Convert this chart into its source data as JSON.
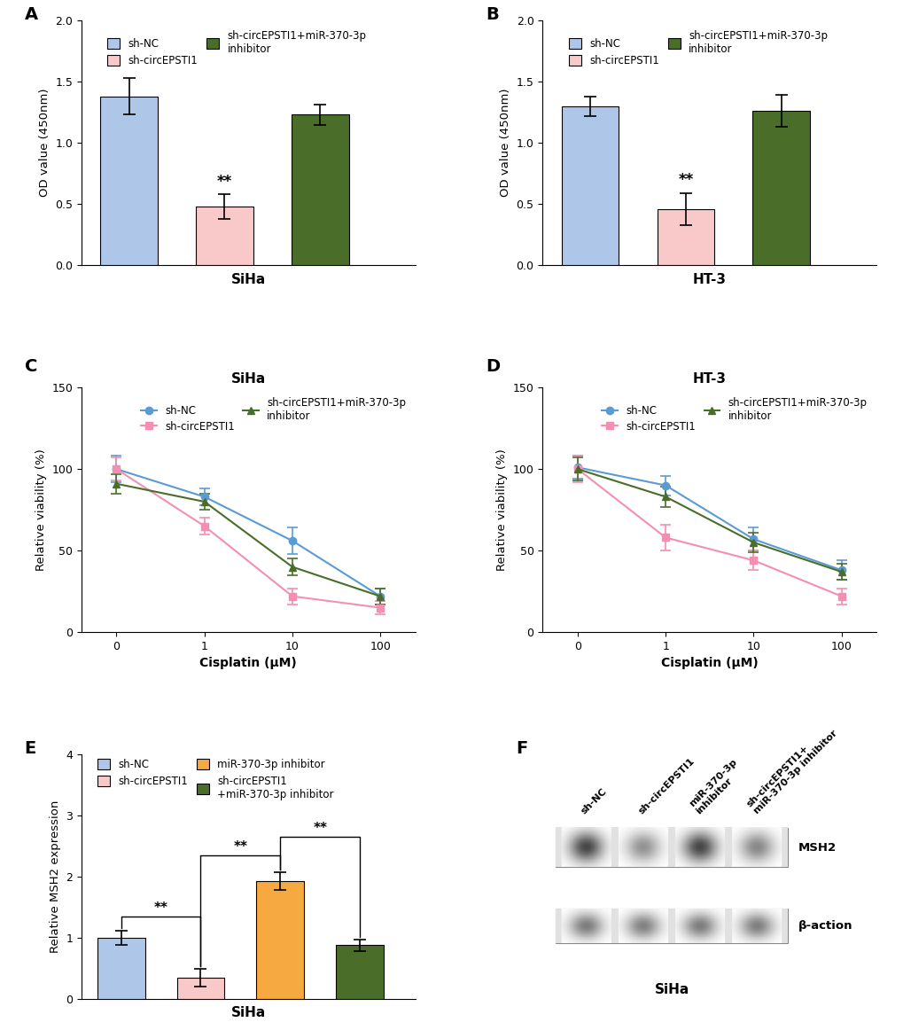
{
  "panel_A": {
    "title": "SiHa",
    "ylabel": "OD value (450nm)",
    "ylim": [
      0,
      2.0
    ],
    "yticks": [
      0.0,
      0.5,
      1.0,
      1.5,
      2.0
    ],
    "bars": [
      {
        "label": "sh-NC",
        "value": 1.38,
        "err": 0.15,
        "color": "#aec6e8"
      },
      {
        "label": "sh-circEPSTI1",
        "value": 0.48,
        "err": 0.1,
        "color": "#f9c8c8"
      },
      {
        "label": "sh-circEPSTI1+miR-370-3p\ninhibitor",
        "value": 1.23,
        "err": 0.08,
        "color": "#4a6e2a"
      }
    ],
    "sig_bar": [
      1,
      "**"
    ]
  },
  "panel_B": {
    "title": "HT-3",
    "ylabel": "OD value (450nm)",
    "ylim": [
      0,
      2.0
    ],
    "yticks": [
      0.0,
      0.5,
      1.0,
      1.5,
      2.0
    ],
    "bars": [
      {
        "label": "sh-NC",
        "value": 1.3,
        "err": 0.08,
        "color": "#aec6e8"
      },
      {
        "label": "sh-circEPSTI1",
        "value": 0.46,
        "err": 0.13,
        "color": "#f9c8c8"
      },
      {
        "label": "sh-circEPSTI1+miR-370-3p\ninhibitor",
        "value": 1.26,
        "err": 0.13,
        "color": "#4a6e2a"
      }
    ],
    "sig_bar": [
      1,
      "**"
    ]
  },
  "panel_C": {
    "title": "SiHa",
    "xlabel": "Cisplatin (μM)",
    "ylabel": "Relative viability (%)",
    "ylim": [
      0,
      150
    ],
    "yticks": [
      0,
      50,
      100,
      150
    ],
    "xticklabels": [
      "0",
      "1",
      "10",
      "100"
    ],
    "lines": [
      {
        "label": "sh-NC",
        "y": [
          100,
          83,
          56,
          22
        ],
        "err": [
          8,
          5,
          8,
          5
        ],
        "color": "#5b9bd5",
        "marker": "o"
      },
      {
        "label": "sh-circEPSTI1",
        "y": [
          100,
          65,
          22,
          15
        ],
        "err": [
          7,
          5,
          5,
          4
        ],
        "color": "#f48fb1",
        "marker": "s"
      },
      {
        "label": "sh-circEPSTI1+miR-370-3p\ninhibitor",
        "y": [
          91,
          80,
          40,
          22
        ],
        "err": [
          6,
          5,
          5,
          5
        ],
        "color": "#4a6e2a",
        "marker": "^"
      }
    ]
  },
  "panel_D": {
    "title": "HT-3",
    "xlabel": "Cisplatin (μM)",
    "ylabel": "Relative viability (%)",
    "ylim": [
      0,
      150
    ],
    "yticks": [
      0,
      50,
      100,
      150
    ],
    "xticklabels": [
      "0",
      "1",
      "10",
      "100"
    ],
    "lines": [
      {
        "label": "sh-NC",
        "y": [
          101,
          90,
          57,
          38
        ],
        "err": [
          7,
          6,
          7,
          6
        ],
        "color": "#5b9bd5",
        "marker": "o"
      },
      {
        "label": "sh-circEPSTI1",
        "y": [
          100,
          58,
          44,
          22
        ],
        "err": [
          8,
          8,
          6,
          5
        ],
        "color": "#f48fb1",
        "marker": "s"
      },
      {
        "label": "sh-circEPSTI1+miR-370-3p\ninhibitor",
        "y": [
          100,
          83,
          55,
          37
        ],
        "err": [
          7,
          6,
          6,
          5
        ],
        "color": "#4a6e2a",
        "marker": "^"
      }
    ]
  },
  "panel_E": {
    "xlabel": "SiHa",
    "ylabel": "Relative MSH2 expression",
    "ylim": [
      0,
      4.0
    ],
    "yticks": [
      0.0,
      1.0,
      2.0,
      3.0,
      4.0
    ],
    "bars": [
      {
        "label": "sh-NC",
        "value": 1.0,
        "err": 0.12,
        "color": "#aec6e8"
      },
      {
        "label": "sh-circEPSTI1",
        "value": 0.35,
        "err": 0.15,
        "color": "#f9c8c8"
      },
      {
        "label": "miR-370-3p inhibitor",
        "value": 1.93,
        "err": 0.15,
        "color": "#f5a940"
      },
      {
        "label": "sh-circEPSTI1\n+miR-370-3p inhibitor",
        "value": 0.88,
        "err": 0.1,
        "color": "#4a6e2a"
      }
    ],
    "sig_pairs": [
      [
        0,
        1,
        "**",
        1.35
      ],
      [
        1,
        2,
        "**",
        2.35
      ],
      [
        2,
        3,
        "**",
        2.65
      ]
    ]
  },
  "panel_F": {
    "title": "SiHa",
    "col_labels": [
      "sh-NC",
      "sh-circEPSTI1",
      "miR-370-3p\ninhibitor",
      "sh-circEPSTI1+\nmiR-370-3p inhibitor"
    ],
    "band_names": [
      "MSH2",
      "β-action"
    ],
    "msh2_intensities": [
      0.85,
      0.5,
      0.85,
      0.55
    ],
    "bactin_intensities": [
      0.6,
      0.58,
      0.6,
      0.59
    ]
  }
}
